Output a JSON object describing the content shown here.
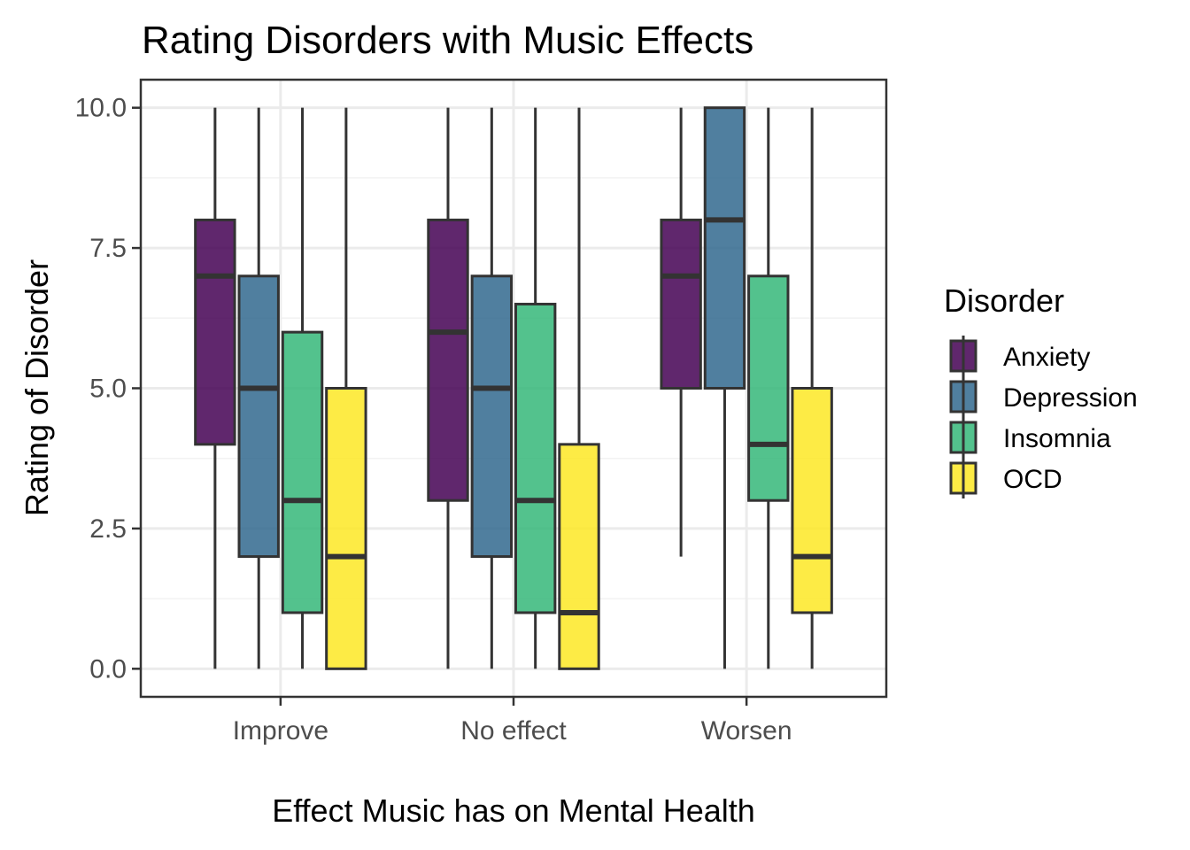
{
  "chart_data": {
    "type": "box",
    "title": "Rating Disorders with Music Effects",
    "xlabel": "Effect Music has on Mental Health",
    "ylabel": "Rating of Disorder",
    "categories": [
      "Improve",
      "No effect",
      "Worsen"
    ],
    "ylim": [
      -0.5,
      10.5
    ],
    "yticks": [
      "0.0",
      "2.5",
      "5.0",
      "7.5",
      "10.0"
    ],
    "grid": true,
    "legend": {
      "title": "Disorder",
      "position": "right"
    },
    "series": [
      {
        "name": "Anxiety",
        "color": "#440154",
        "boxes": [
          {
            "min": 0,
            "q1": 4,
            "median": 7,
            "q3": 8,
            "max": 10
          },
          {
            "min": 0,
            "q1": 3,
            "median": 6,
            "q3": 8,
            "max": 10
          },
          {
            "min": 2,
            "q1": 5,
            "median": 7,
            "q3": 8,
            "max": 10
          }
        ]
      },
      {
        "name": "Depression",
        "color": "#31688E",
        "boxes": [
          {
            "min": 0,
            "q1": 2,
            "median": 5,
            "q3": 7,
            "max": 10
          },
          {
            "min": 0,
            "q1": 2,
            "median": 5,
            "q3": 7,
            "max": 10
          },
          {
            "min": 0,
            "q1": 5,
            "median": 8,
            "q3": 10,
            "max": 10
          }
        ]
      },
      {
        "name": "Insomnia",
        "color": "#35B779",
        "boxes": [
          {
            "min": 0,
            "q1": 1,
            "median": 3,
            "q3": 6,
            "max": 10
          },
          {
            "min": 0,
            "q1": 1,
            "median": 3,
            "q3": 6.5,
            "max": 10
          },
          {
            "min": 0,
            "q1": 3,
            "median": 4,
            "q3": 7,
            "max": 10
          }
        ]
      },
      {
        "name": "OCD",
        "color": "#FDE725",
        "boxes": [
          {
            "min": 0,
            "q1": 0,
            "median": 2,
            "q3": 5,
            "max": 10
          },
          {
            "min": 0,
            "q1": 0,
            "median": 1,
            "q3": 4,
            "max": 10
          },
          {
            "min": 0,
            "q1": 1,
            "median": 2,
            "q3": 5,
            "max": 10
          }
        ]
      }
    ]
  }
}
